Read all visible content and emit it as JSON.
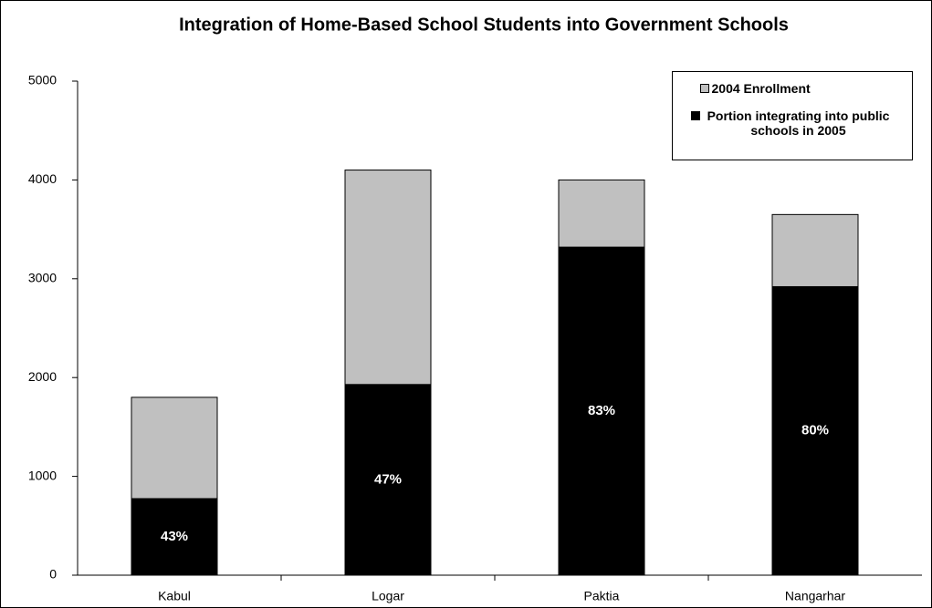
{
  "chart_data": {
    "type": "overlap_bar",
    "title": "Integration of Home-Based School Students into Government Schools",
    "categories": [
      "Kabul",
      "Logar",
      "Paktia",
      "Nangarhar"
    ],
    "series": [
      {
        "name": "2004 Enrollment",
        "color": "#c0c0c0",
        "values": [
          1800,
          4100,
          4000,
          3650
        ]
      },
      {
        "name": "Portion integrating into public schools in 2005",
        "color": "#000000",
        "values": [
          775,
          1930,
          3320,
          2920
        ],
        "percentages": [
          43,
          47,
          83,
          80
        ],
        "percentage_labels": [
          "43%",
          "47%",
          "83%",
          "80%"
        ]
      }
    ],
    "ylim": [
      0,
      5000
    ],
    "yticks": [
      0,
      1000,
      2000,
      3000,
      4000,
      5000
    ],
    "grid": false,
    "legend": "top-right"
  }
}
